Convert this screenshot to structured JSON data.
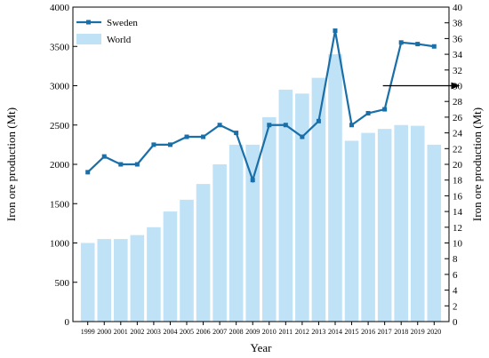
{
  "chart_data": {
    "type": "bar+line",
    "xlabel": "Year",
    "ylabel_left": "Iron ore production (Mt)",
    "ylabel_right": "Iron ore production (Mt)",
    "ylim_left": [
      0,
      4000
    ],
    "ylim_right": [
      0,
      40
    ],
    "yticks_left": [
      0,
      500,
      1000,
      1500,
      2000,
      2500,
      3000,
      3500,
      4000
    ],
    "yticks_right": [
      0,
      2,
      4,
      6,
      8,
      10,
      12,
      14,
      16,
      18,
      20,
      22,
      24,
      26,
      28,
      30,
      32,
      34,
      36,
      38,
      40
    ],
    "categories": [
      "1999",
      "2000",
      "2001",
      "2002",
      "2003",
      "2004",
      "2005",
      "2006",
      "2007",
      "2008",
      "2009",
      "2010",
      "2011",
      "2012",
      "2013",
      "2014",
      "2015",
      "2016",
      "2017",
      "2018",
      "2019",
      "2020"
    ],
    "grid": false,
    "legend_position": "top-left",
    "series": [
      {
        "name": "Sweden",
        "kind": "line",
        "axis": "right",
        "color": "#1a6fa8",
        "values": [
          19,
          21,
          20,
          20,
          22.5,
          22.5,
          23.5,
          23.5,
          25,
          24,
          18,
          25,
          25,
          23.5,
          25.5,
          37,
          25,
          26.5,
          27,
          35.5,
          35.3,
          35
        ]
      },
      {
        "name": "World",
        "kind": "bar",
        "axis": "left",
        "color": "#bfe2f7",
        "values": [
          1000,
          1050,
          1050,
          1100,
          1200,
          1400,
          1550,
          1750,
          2000,
          2250,
          2250,
          2600,
          2950,
          2900,
          3100,
          3400,
          2300,
          2400,
          2450,
          2500,
          2490,
          2250
        ]
      }
    ],
    "annotations": [
      {
        "type": "arrow",
        "from": {
          "year": "2017",
          "value_right": 30
        },
        "to": {
          "year": "2020",
          "value_right": 30
        },
        "color": "#000000"
      }
    ]
  }
}
